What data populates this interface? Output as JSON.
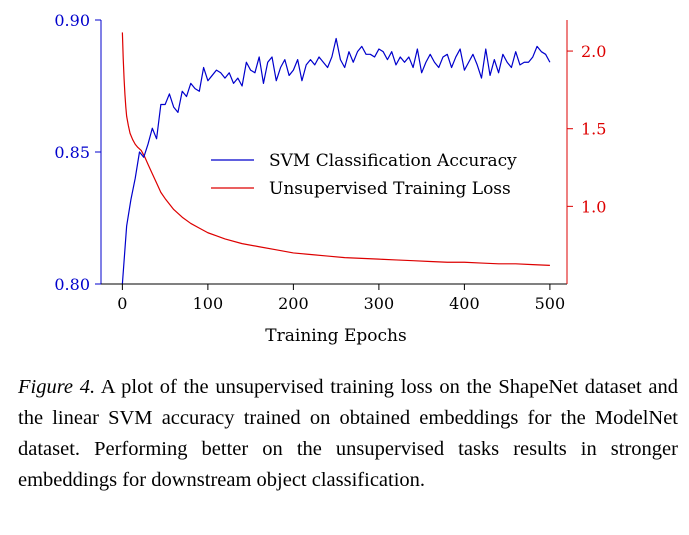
{
  "colors": {
    "accuracy": "#0000cc",
    "loss": "#dd0000",
    "axis": "#000000"
  },
  "chart_data": {
    "type": "line",
    "title": "",
    "xlabel": "Training Epochs",
    "xlim": [
      -25,
      520
    ],
    "x_ticks": [
      0,
      100,
      200,
      300,
      400,
      500
    ],
    "grid": false,
    "legend_position": "center-right",
    "left_axis": {
      "label": "",
      "lim": [
        0.8,
        0.9
      ],
      "ticks": [
        "0.80",
        "0.85",
        "0.90"
      ]
    },
    "right_axis": {
      "label": "",
      "lim": [
        0.5,
        2.2
      ],
      "ticks": [
        "1.0",
        "1.5",
        "2.0"
      ]
    },
    "series": [
      {
        "name": "SVM Classification Accuracy",
        "axis": "left",
        "color": "#0000cc",
        "x": [
          0,
          5,
          10,
          15,
          20,
          25,
          30,
          35,
          40,
          45,
          50,
          55,
          60,
          65,
          70,
          75,
          80,
          85,
          90,
          95,
          100,
          105,
          110,
          115,
          120,
          125,
          130,
          135,
          140,
          145,
          150,
          155,
          160,
          165,
          170,
          175,
          180,
          185,
          190,
          195,
          200,
          205,
          210,
          215,
          220,
          225,
          230,
          235,
          240,
          245,
          250,
          255,
          260,
          265,
          270,
          275,
          280,
          285,
          290,
          295,
          300,
          305,
          310,
          315,
          320,
          325,
          330,
          335,
          340,
          345,
          350,
          355,
          360,
          365,
          370,
          375,
          380,
          385,
          390,
          395,
          400,
          405,
          410,
          415,
          420,
          425,
          430,
          435,
          440,
          445,
          450,
          455,
          460,
          465,
          470,
          475,
          480,
          485,
          490,
          495,
          500
        ],
        "y": [
          0.8,
          0.822,
          0.832,
          0.84,
          0.85,
          0.848,
          0.853,
          0.859,
          0.855,
          0.868,
          0.868,
          0.872,
          0.867,
          0.865,
          0.873,
          0.871,
          0.876,
          0.874,
          0.873,
          0.882,
          0.877,
          0.879,
          0.881,
          0.88,
          0.878,
          0.88,
          0.876,
          0.878,
          0.875,
          0.884,
          0.881,
          0.88,
          0.886,
          0.876,
          0.884,
          0.886,
          0.877,
          0.882,
          0.885,
          0.879,
          0.881,
          0.885,
          0.877,
          0.883,
          0.885,
          0.883,
          0.886,
          0.884,
          0.882,
          0.886,
          0.893,
          0.885,
          0.882,
          0.888,
          0.884,
          0.888,
          0.89,
          0.887,
          0.887,
          0.886,
          0.889,
          0.888,
          0.885,
          0.888,
          0.883,
          0.886,
          0.884,
          0.886,
          0.882,
          0.889,
          0.88,
          0.884,
          0.887,
          0.884,
          0.882,
          0.886,
          0.887,
          0.882,
          0.886,
          0.889,
          0.881,
          0.884,
          0.887,
          0.883,
          0.878,
          0.889,
          0.879,
          0.885,
          0.88,
          0.887,
          0.884,
          0.882,
          0.888,
          0.883,
          0.884,
          0.884,
          0.886,
          0.89,
          0.888,
          0.887,
          0.884
        ]
      },
      {
        "name": "Unsupervised Training Loss",
        "axis": "right",
        "color": "#dd0000",
        "x": [
          0,
          1,
          2,
          3,
          4,
          5,
          7,
          9,
          12,
          15,
          18,
          22,
          26,
          30,
          35,
          40,
          45,
          50,
          60,
          70,
          80,
          90,
          100,
          110,
          120,
          140,
          160,
          180,
          200,
          220,
          240,
          260,
          280,
          300,
          320,
          340,
          360,
          380,
          400,
          420,
          440,
          460,
          480,
          500
        ],
        "y": [
          2.12,
          1.95,
          1.82,
          1.72,
          1.64,
          1.58,
          1.52,
          1.47,
          1.43,
          1.4,
          1.38,
          1.36,
          1.32,
          1.27,
          1.21,
          1.15,
          1.09,
          1.05,
          0.98,
          0.93,
          0.89,
          0.86,
          0.83,
          0.81,
          0.79,
          0.76,
          0.74,
          0.72,
          0.7,
          0.69,
          0.68,
          0.67,
          0.665,
          0.66,
          0.655,
          0.65,
          0.645,
          0.64,
          0.64,
          0.635,
          0.63,
          0.63,
          0.625,
          0.62
        ]
      }
    ]
  },
  "caption": {
    "label": "Figure 4.",
    "text": " A plot of the unsupervised training loss on the ShapeNet dataset and the linear SVM accuracy trained on obtained embeddings for the ModelNet dataset. Performing better on the unsupervised tasks results in stronger embeddings for downstream object classification."
  }
}
